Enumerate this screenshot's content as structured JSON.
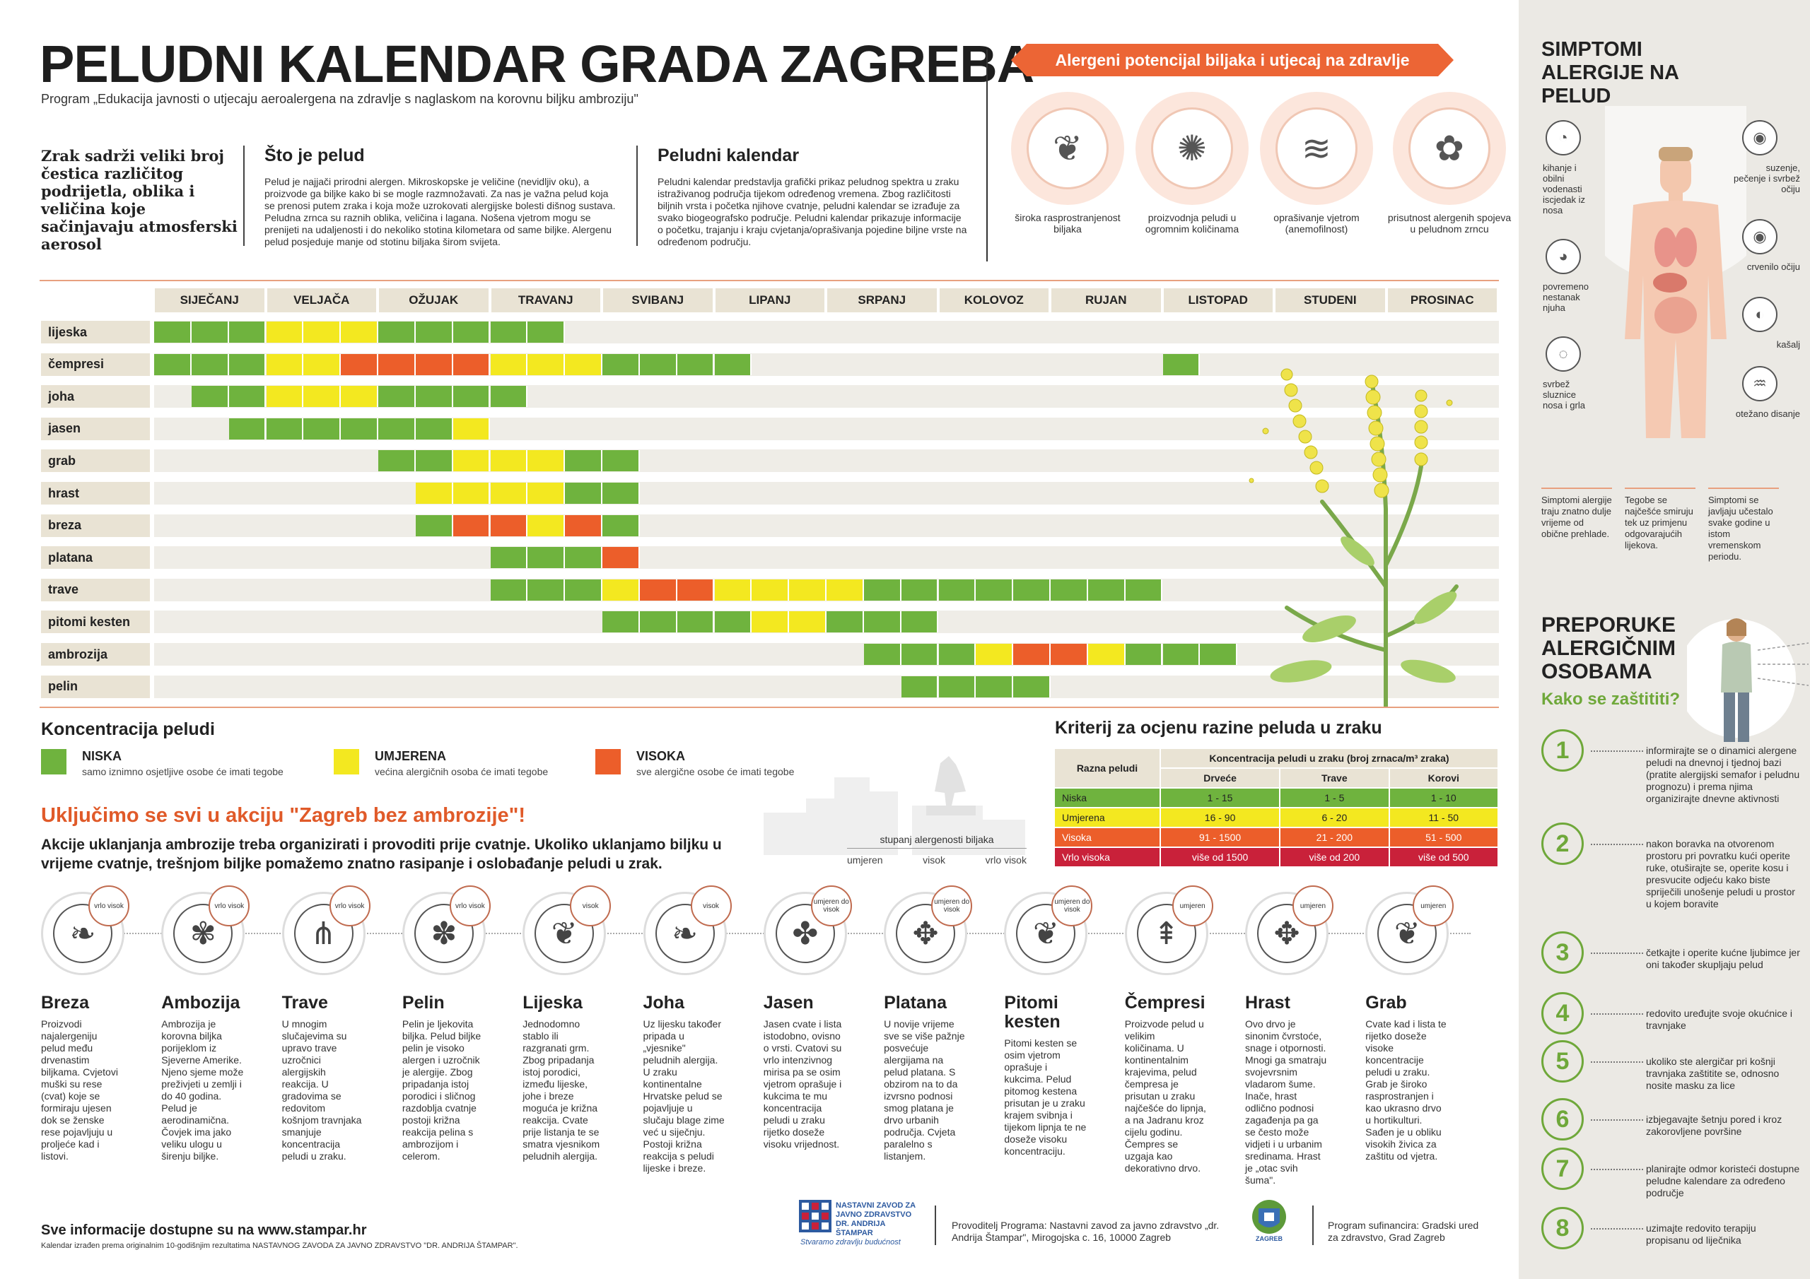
{
  "colors": {
    "low": "#6fb33e",
    "medium": "#f3e820",
    "high": "#ec5e2a",
    "very_high": "#c9213a",
    "accent": "#ec6535",
    "beige": "#e9e3d4",
    "cell_bg": "#efede7",
    "green_text": "#6fa83a"
  },
  "header": {
    "title": "PELUDNI KALENDAR GRADA ZAGREBA",
    "subtitle": "Program „Edukacija javnosti o utjecaju aeroalergena na zdravlje s naglaskom na korovnu biljku ambroziju\""
  },
  "intro": {
    "air": "Zrak sadrži veliki broj čestica različitog podrijetla, oblika i veličina koje sačinjavaju atmosferski aerosol",
    "pollen_title": "Što je pelud",
    "pollen_text": "Pelud je najjači prirodni alergen. Mikroskopske je veličine (nevidljiv oku), a proizvode ga biljke kako bi se mogle razmnožavati. Za nas je važna pelud koja se prenosi putem zraka i koja može uzrokovati alergijske bolesti dišnog sustava. Peludna zrnca su raznih oblika, veličina i lagana. Nošena vjetrom mogu se prenijeti na udaljenosti i do nekoliko stotina kilometara od same biljke. Alergenu pelud posjeduje manje od stotinu biljaka širom svijeta.",
    "calendar_title": "Peludni kalendar",
    "calendar_text": "Peludni kalendar predstavlja grafički prikaz peludnog spektra u zraku istraživanog područja tijekom određenog vremena. Zbog različitosti biljnih vrsta i početka njihove cvatnje, peludni kalendar se izrađuje za svako biogeografsko područje. Peludni kalendar prikazuje informacije o početku, trajanju i kraju cvjetanja/oprašivanja pojedine biljne vrste na određenom području."
  },
  "potential": {
    "banner": "Alergeni potencijal biljaka i utjecaj na zdravlje",
    "items": [
      {
        "label": "široka rasprostranjenost biljaka",
        "icon": "leaf-spread-icon"
      },
      {
        "label": "proizvodnja peludi u ogromnim količinama",
        "icon": "pollen-burst-icon"
      },
      {
        "label": "oprašivanje vjetrom (anemofilnost)",
        "icon": "wind-icon"
      },
      {
        "label": "prisutnost alergenih spojeva u peludnom zrncu",
        "icon": "pollen-grain-icon"
      }
    ]
  },
  "calendar": {
    "months": [
      "SIJEČANJ",
      "VELJAČA",
      "OŽUJAK",
      "TRAVANJ",
      "SVIBANJ",
      "LIPANJ",
      "SRPANJ",
      "KOLOVOZ",
      "RUJAN",
      "LISTOPAD",
      "STUDENI",
      "PROSINAC"
    ],
    "plants": [
      {
        "name": "lijeska",
        "cells": [
          [
            0,
            "L"
          ],
          [
            1,
            "L"
          ],
          [
            2,
            "L"
          ],
          [
            3,
            "M"
          ],
          [
            4,
            "M"
          ],
          [
            5,
            "M"
          ],
          [
            6,
            "L"
          ],
          [
            7,
            "L"
          ],
          [
            8,
            "L"
          ],
          [
            9,
            "L"
          ],
          [
            10,
            "L"
          ]
        ]
      },
      {
        "name": "čempresi",
        "cells": [
          [
            0,
            "L"
          ],
          [
            1,
            "L"
          ],
          [
            2,
            "L"
          ],
          [
            3,
            "M"
          ],
          [
            4,
            "M"
          ],
          [
            5,
            "H"
          ],
          [
            6,
            "H"
          ],
          [
            7,
            "H"
          ],
          [
            8,
            "H"
          ],
          [
            9,
            "M"
          ],
          [
            10,
            "M"
          ],
          [
            11,
            "M"
          ],
          [
            12,
            "L"
          ],
          [
            13,
            "L"
          ],
          [
            14,
            "L"
          ],
          [
            15,
            "L"
          ],
          [
            27,
            "L"
          ]
        ]
      },
      {
        "name": "joha",
        "cells": [
          [
            1,
            "L"
          ],
          [
            2,
            "L"
          ],
          [
            3,
            "M"
          ],
          [
            4,
            "M"
          ],
          [
            5,
            "M"
          ],
          [
            6,
            "L"
          ],
          [
            7,
            "L"
          ],
          [
            8,
            "L"
          ],
          [
            9,
            "L"
          ]
        ]
      },
      {
        "name": "jasen",
        "cells": [
          [
            2,
            "L"
          ],
          [
            3,
            "L"
          ],
          [
            4,
            "L"
          ],
          [
            5,
            "L"
          ],
          [
            6,
            "L"
          ],
          [
            7,
            "L"
          ],
          [
            8,
            "M"
          ]
        ]
      },
      {
        "name": "grab",
        "cells": [
          [
            6,
            "L"
          ],
          [
            7,
            "L"
          ],
          [
            8,
            "M"
          ],
          [
            9,
            "M"
          ],
          [
            10,
            "M"
          ],
          [
            11,
            "L"
          ],
          [
            12,
            "L"
          ]
        ]
      },
      {
        "name": "hrast",
        "cells": [
          [
            7,
            "M"
          ],
          [
            8,
            "M"
          ],
          [
            9,
            "M"
          ],
          [
            10,
            "M"
          ],
          [
            11,
            "L"
          ],
          [
            12,
            "L"
          ]
        ]
      },
      {
        "name": "breza",
        "cells": [
          [
            7,
            "L"
          ],
          [
            8,
            "H"
          ],
          [
            9,
            "H"
          ],
          [
            10,
            "M"
          ],
          [
            11,
            "H"
          ],
          [
            12,
            "L"
          ]
        ]
      },
      {
        "name": "platana",
        "cells": [
          [
            9,
            "L"
          ],
          [
            10,
            "L"
          ],
          [
            11,
            "L"
          ],
          [
            12,
            "H"
          ]
        ]
      },
      {
        "name": "trave",
        "cells": [
          [
            9,
            "L"
          ],
          [
            10,
            "L"
          ],
          [
            11,
            "L"
          ],
          [
            12,
            "M"
          ],
          [
            13,
            "H"
          ],
          [
            14,
            "H"
          ],
          [
            15,
            "M"
          ],
          [
            16,
            "M"
          ],
          [
            17,
            "M"
          ],
          [
            18,
            "M"
          ],
          [
            19,
            "L"
          ],
          [
            20,
            "L"
          ],
          [
            21,
            "L"
          ],
          [
            22,
            "L"
          ],
          [
            23,
            "L"
          ],
          [
            24,
            "L"
          ],
          [
            25,
            "L"
          ],
          [
            26,
            "L"
          ]
        ]
      },
      {
        "name": "pitomi kesten",
        "cells": [
          [
            12,
            "L"
          ],
          [
            13,
            "L"
          ],
          [
            14,
            "L"
          ],
          [
            15,
            "L"
          ],
          [
            16,
            "M"
          ],
          [
            17,
            "M"
          ],
          [
            18,
            "L"
          ],
          [
            19,
            "L"
          ],
          [
            20,
            "L"
          ]
        ]
      },
      {
        "name": "ambrozija",
        "cells": [
          [
            19,
            "L"
          ],
          [
            20,
            "L"
          ],
          [
            21,
            "L"
          ],
          [
            22,
            "M"
          ],
          [
            23,
            "H"
          ],
          [
            24,
            "H"
          ],
          [
            25,
            "M"
          ],
          [
            26,
            "L"
          ],
          [
            27,
            "L"
          ],
          [
            28,
            "L"
          ]
        ]
      },
      {
        "name": "pelin",
        "cells": [
          [
            20,
            "L"
          ],
          [
            21,
            "L"
          ],
          [
            22,
            "L"
          ],
          [
            23,
            "L"
          ]
        ]
      }
    ]
  },
  "concentration": {
    "title": "Koncentracija peludi",
    "levels": [
      {
        "name": "NISKA",
        "desc": "samo iznimno osjetljive osobe će imati tegobe",
        "color": "#6fb33e"
      },
      {
        "name": "UMJERENA",
        "desc": "većina  alergičnih osoba će imati tegobe",
        "color": "#f3e820"
      },
      {
        "name": "VISOKA",
        "desc": "sve  alergične osobe će imati tegobe",
        "color": "#ec5e2a"
      }
    ]
  },
  "criteria": {
    "title": "Kriterij za ocjenu razine peluda u zraku",
    "level_header": "Razna peludi",
    "conc_header": "Koncentracija peludi u zraku (broj zrnaca/m³ zraka)",
    "cols": [
      "Drveće",
      "Trave",
      "Korovi"
    ],
    "rows": [
      {
        "level": "Niska",
        "values": [
          "1 - 15",
          "1 - 5",
          "1 - 10"
        ],
        "color": "#6fb33e",
        "text": "#222"
      },
      {
        "level": "Umjerena",
        "values": [
          "16 - 90",
          "6 - 20",
          "11 - 50"
        ],
        "color": "#f3e820",
        "text": "#222"
      },
      {
        "level": "Visoka",
        "values": [
          "91 - 1500",
          "21 - 200",
          "51 - 500"
        ],
        "color": "#ec5e2a",
        "text": "#fff"
      },
      {
        "level": "Vrlo visoka",
        "values": [
          "više od 1500",
          "više od 200",
          "više od 500"
        ],
        "color": "#c9213a",
        "text": "#fff"
      }
    ]
  },
  "action": {
    "title": "Uključimo se svi u akciju \"Zagreb bez ambrozije\"!",
    "text": "Akcije uklanjanja ambrozije treba organizirati i provoditi prije cvatnje. Ukoliko uklanjamo biljku u vrijeme cvatnje, trešnjom biljke pomažemo znatno rasipanje i oslobađanje peludi u zrak."
  },
  "severity": {
    "title": "stupanj alergenosti biljaka",
    "labels": [
      "umjeren",
      "visok",
      "vrlo visok"
    ]
  },
  "plant_cards": [
    {
      "name": "Breza",
      "badge": "vrlo visok",
      "icon": "birch-leaf-icon",
      "text": "Proizvodi najalergeniju pelud među drvenastim biljkama. Cvjetovi muški su rese (cvat) koje se formiraju ujesen dok se ženske rese pojavljuju u proljeće kad i listovi."
    },
    {
      "name": "Ambozija",
      "badge": "vrlo visok",
      "icon": "ragweed-icon",
      "text": "Ambrozija je korovna biljka porijeklom iz Sjeverne Amerike. Njeno sjeme može preživjeti u zemlji i do 40 godina. Pelud je aerodinamična. Čovjek ima jako veliku ulogu u širenju biljke."
    },
    {
      "name": "Trave",
      "badge": "vrlo visok",
      "icon": "grass-icon",
      "text": "U mnogim slučajevima su upravo trave uzročnici alergijskih reakcija. U gradovima se redovitom košnjom travnjaka smanjuje koncentracija peludi u zraku."
    },
    {
      "name": "Pelin",
      "badge": "vrlo visok",
      "icon": "mugwort-icon",
      "text": "Pelin je ljekovita biljka. Pelud biljke pelin je visoko alergen i uzročnik je alergije. Zbog pripadanja istoj porodici i sličnog razdoblja cvatnje postoji križna reakcija pelina s ambrozijom i celerom."
    },
    {
      "name": "Lijeska",
      "badge": "visok",
      "icon": "hazel-leaf-icon",
      "text": "Jednodomno stablo ili razgranati grm. Zbog pripadanja istoj porodici, između lijeske, johe i breze moguća je križna reakcija. Cvate prije listanja te se smatra vjesnikom peludnih alergija."
    },
    {
      "name": "Joha",
      "badge": "visok",
      "icon": "alder-leaf-icon",
      "text": "Uz lijesku također pripada u „vjesnike\" peludnih alergija. U zraku kontinentalne Hrvatske pelud se pojavljuje u slučaju blage zime već u siječnju. Postoji križna reakcija s peludi lijeske i breze."
    },
    {
      "name": "Jasen",
      "badge": "umjeren do visok",
      "icon": "ash-leaf-icon",
      "text": "Jasen cvate i lista istodobno, ovisno o vrsti. Cvatovi su vrlo intenzivnog mirisa pa se osim vjetrom oprašuje i kukcima te mu koncentracija peludi u zraku rijetko doseže visoku vrijednost."
    },
    {
      "name": "Platana",
      "badge": "umjeren do visok",
      "icon": "plane-leaf-icon",
      "text": "U novije vrijeme sve se više pažnje posvećuje alergijama na pelud platana. S obzirom na to da izvrsno podnosi smog platana je drvo urbanih područja. Cvjeta paralelno s listanjem."
    },
    {
      "name": "Pitomi kesten",
      "badge": "umjeren do visok",
      "icon": "chestnut-leaf-icon",
      "text": "Pitomi kesten se osim vjetrom oprašuje i kukcima. Pelud pitomog kestena prisutan je u zraku krajem svibnja i tijekom lipnja te ne doseže visoku koncentraciju."
    },
    {
      "name": "Čempresi",
      "badge": "umjeren",
      "icon": "cypress-icon",
      "text": "Proizvode pelud u velikim količinama. U kontinentalnim krajevima, pelud čempresa je prisutan u zraku najčešće do lipnja, a na Jadranu kroz cijelu godinu. Čempres se uzgaja kao dekorativno drvo."
    },
    {
      "name": "Hrast",
      "badge": "umjeren",
      "icon": "oak-leaf-icon",
      "text": "Ovo drvo je sinonim čvrstoće, snage i otpornosti. Mnogi ga smatraju svojevrsnim vladarom šume. Inače, hrast odlično podnosi zagađenja pa ga se često može vidjeti i u urbanim sredinama. Hrast je „otac svih šuma\"."
    },
    {
      "name": "Grab",
      "badge": "umjeren",
      "icon": "hornbeam-leaf-icon",
      "text": "Cvate kad i lista te rijetko doseže visoke koncentracije peludi u zraku. Grab je široko rasprostranjen i kao ukrasno drvo u hortikulturi. Sađen je u obliku visokih živica za zaštitu od vjetra."
    }
  ],
  "footer": {
    "info": "Sve informacije dostupne su na www.stampar.hr",
    "small": "Kalendar izrađen prema originalnim 10-godišnjim rezultatima NASTAVNOG ZAVODA ZA JAVNO ZDRAVSTVO \"DR. ANDRIJA ŠTAMPAR\".",
    "inst_name": "NASTAVNI ZAVOD ZA JAVNO ZDRAVSTVO DR. ANDRIJA ŠTAMPAR",
    "inst_slogan": "Stvaramo zdravlju budućnost",
    "provider": "Provoditelj Programa: Nastavni zavod za javno zdravstvo „dr. Andrija Štampar\", Mirogojska c. 16, 10000 Zagreb",
    "city": "ZAGREB",
    "funder": "Program sufinancira: Gradski ured za zdravstvo, Grad Zagreb"
  },
  "symptoms": {
    "title": "SIMPTOMI ALERGIJE NA PELUD",
    "left": [
      {
        "label": "kihanje i obilni vodenasti iscjedak iz nosa",
        "icon": "nose-icon"
      },
      {
        "label": "povremeno nestanak njuha",
        "icon": "nose-smell-icon"
      },
      {
        "label": "svrbež sluznice nosa i grla",
        "icon": "throat-icon"
      }
    ],
    "right": [
      {
        "label": "suzenje, pečenje i svrbež očiju",
        "icon": "eye-tears-icon"
      },
      {
        "label": "crvenilo očiju",
        "icon": "eye-icon"
      },
      {
        "label": "kašalj",
        "icon": "cough-icon"
      },
      {
        "label": "otežano disanje",
        "icon": "lungs-icon"
      }
    ],
    "notes": [
      "Simptomi alergije traju znatno dulje vrijeme od obične prehlade.",
      "Tegobe se najčešće smiruju tek uz primjenu odgovarajućih lijekova.",
      "Simptomi se javljaju učestalo svake godine u istom vremenskom periodu."
    ]
  },
  "recommendations": {
    "title": "PREPORUKE ALERGIČNIM OSOBAMA",
    "subtitle": "Kako se zaštititi?",
    "items": [
      {
        "num": "1",
        "text": "informirajte se o dinamici alergene peludi na dnevnoj i tjednoj bazi (pratite alergijski semafor i peludnu prognozu) i prema njima organizirajte dnevne aktivnosti"
      },
      {
        "num": "2",
        "text": "nakon boravka na otvorenom prostoru pri povratku kući operite ruke, otuširajte se, operite kosu i presvucite odjeću kako biste spriječili unošenje peludi u prostor u kojem boravite"
      },
      {
        "num": "3",
        "text": "četkajte i operite kućne ljubimce jer oni također skupljaju pelud"
      },
      {
        "num": "4",
        "text": "redovito uređujte svoje okućnice i travnjake"
      },
      {
        "num": "5",
        "text": "ukoliko ste alergičar pri košnji travnjaka zaštitite se, odnosno nosite masku za lice"
      },
      {
        "num": "6",
        "text": "izbjegavajte šetnju pored i kroz zakorovljene površine"
      },
      {
        "num": "7",
        "text": "planirajte odmor koristeći dostupne peludne kalendare za određeno područje"
      },
      {
        "num": "8",
        "text": "uzimajte redovito terapiju propisanu od liječnika"
      }
    ]
  }
}
